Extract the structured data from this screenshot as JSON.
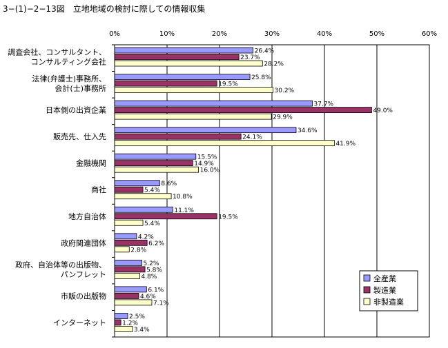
{
  "chart_data": {
    "type": "bar",
    "orientation": "horizontal",
    "title": "3−(1)−2−13図　立地地域の検討に際しての情報収集",
    "xlabel": "",
    "ylabel": "",
    "xlim": [
      0,
      60
    ],
    "x_ticks": [
      "0%",
      "10%",
      "20%",
      "30%",
      "40%",
      "50%",
      "60%"
    ],
    "grid": true,
    "legend_position": "bottom-right",
    "categories": [
      [
        "調査会社、コンサルタント、",
        "コンサルティング会社"
      ],
      [
        "法律(弁護士)事務所、",
        "会計(士)事務所"
      ],
      [
        "日本側の出資企業"
      ],
      [
        "販売先、仕入先"
      ],
      [
        "金融機関"
      ],
      [
        "商社"
      ],
      [
        "地方自治体"
      ],
      [
        "政府関連団体"
      ],
      [
        "政府、自治体等の出版物、",
        "パンフレット"
      ],
      [
        "市販の出版物"
      ],
      [
        "インターネット"
      ]
    ],
    "series": [
      {
        "name": "全産業",
        "color": "#9999ff",
        "values": [
          26.4,
          25.8,
          37.7,
          34.6,
          15.5,
          8.6,
          11.1,
          4.2,
          5.2,
          6.1,
          2.5
        ]
      },
      {
        "name": "製造業",
        "color": "#993366",
        "values": [
          23.7,
          19.5,
          49.0,
          24.1,
          14.9,
          5.4,
          19.5,
          6.2,
          5.8,
          4.6,
          1.2
        ]
      },
      {
        "name": "非製造業",
        "color": "#ffffcc",
        "values": [
          28.2,
          30.2,
          29.9,
          41.9,
          16.0,
          10.8,
          5.4,
          2.8,
          4.8,
          7.1,
          3.4
        ]
      }
    ]
  }
}
